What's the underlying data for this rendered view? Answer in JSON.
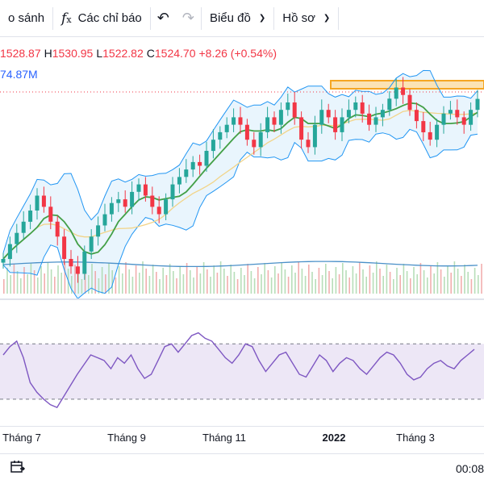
{
  "toolbar": {
    "compare_label": "o sánh",
    "indicators_label": "Các chỉ báo",
    "indicators_icon": "function-icon",
    "undo_icon": "undo-icon",
    "redo_icon": "redo-icon",
    "chart_type_label": "Biểu đồ",
    "profile_label": "Hồ sơ"
  },
  "legend": {
    "open": "1528.87",
    "high_label": "H",
    "high": "1530.95",
    "low_label": "L",
    "low": "1522.82",
    "close_label": "C",
    "close": "1524.70",
    "change": "+8.26 (+0.54%)",
    "volume": "74.87M"
  },
  "colors": {
    "up": "#26a69a",
    "down": "#f23645",
    "bollinger_band": "#2196f3",
    "bollinger_fill": "#e3f2fd",
    "ma_green": "#43a047",
    "ma_yellow": "#f2d488",
    "rsi_line": "#7e57c2",
    "rsi_fill": "#ede7f6",
    "resistance_box": "#f5a623"
  },
  "time_axis": {
    "labels": [
      {
        "text": "Tháng 7",
        "bold": false
      },
      {
        "text": "Tháng 9",
        "bold": false
      },
      {
        "text": "Tháng 11",
        "bold": false
      },
      {
        "text": "2022",
        "bold": true
      },
      {
        "text": "Tháng 3",
        "bold": false
      }
    ]
  },
  "bottom_bar": {
    "date_range_icon": "calendar-range-icon",
    "clock": "00:08"
  },
  "chart_data": {
    "type": "candlestick",
    "title": "",
    "xlabel": "",
    "ylabel": "",
    "x_ticks": [
      "Tháng 7",
      "Tháng 9",
      "Tháng 11",
      "2022",
      "Tháng 3"
    ],
    "indicators": [
      "Bollinger Bands",
      "Moving Average",
      "Volume",
      "RSI"
    ],
    "price_series_close": [
      1310,
      1330,
      1345,
      1360,
      1375,
      1395,
      1380,
      1360,
      1340,
      1310,
      1300,
      1290,
      1320,
      1340,
      1355,
      1370,
      1385,
      1390,
      1380,
      1400,
      1410,
      1395,
      1380,
      1370,
      1390,
      1410,
      1420,
      1430,
      1440,
      1435,
      1455,
      1470,
      1480,
      1490,
      1500,
      1490,
      1470,
      1460,
      1480,
      1500,
      1490,
      1510,
      1520,
      1500,
      1470,
      1460,
      1490,
      1510,
      1500,
      1480,
      1500,
      1510,
      1520,
      1505,
      1490,
      1500,
      1510,
      1525,
      1540,
      1530,
      1510,
      1495,
      1480,
      1470,
      1490,
      1505,
      1510,
      1500,
      1490,
      1510,
      1524.7
    ],
    "rsi_levels": {
      "upper": 70,
      "lower": 30
    },
    "rsi_series": [
      62,
      68,
      72,
      60,
      42,
      35,
      30,
      26,
      24,
      32,
      40,
      48,
      55,
      62,
      60,
      58,
      52,
      60,
      56,
      62,
      52,
      45,
      48,
      58,
      68,
      70,
      64,
      70,
      76,
      78,
      74,
      72,
      66,
      60,
      56,
      62,
      70,
      68,
      58,
      50,
      56,
      62,
      64,
      56,
      48,
      46,
      54,
      62,
      58,
      50,
      56,
      60,
      58,
      52,
      48,
      54,
      60,
      64,
      62,
      56,
      48,
      44,
      46,
      52,
      56,
      58,
      54,
      52,
      58,
      62,
      66
    ]
  }
}
